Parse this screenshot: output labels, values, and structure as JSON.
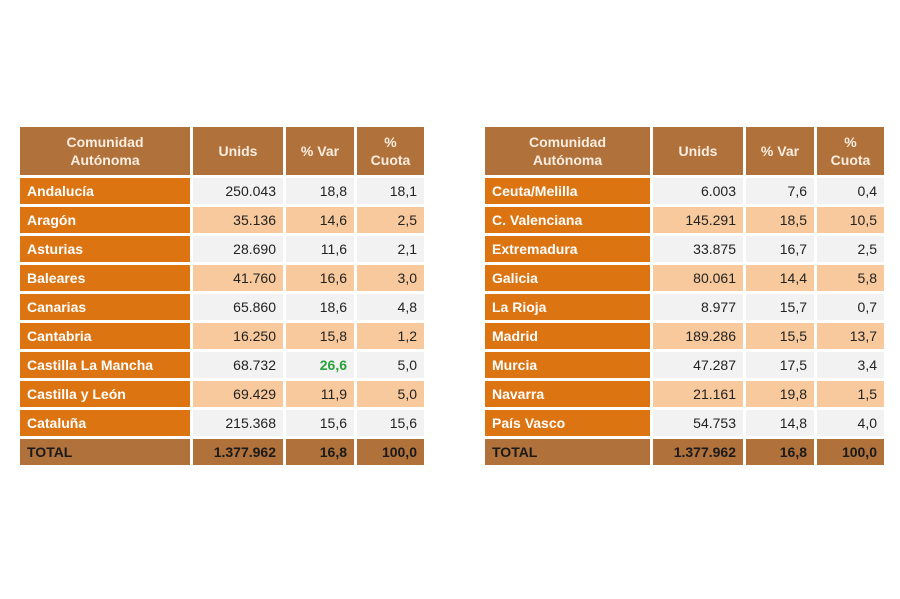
{
  "headers": {
    "comunidad_line1": "Comunidad",
    "comunidad_line2": "Autónoma",
    "units": "Unids",
    "var": "% Var",
    "cuota_line1": "%",
    "cuota_line2": "Cuota"
  },
  "left_table": {
    "rows": [
      {
        "name": "Andalucía",
        "units": "250.043",
        "var": "18,8",
        "cuota": "18,1"
      },
      {
        "name": "Aragón",
        "units": "35.136",
        "var": "14,6",
        "cuota": "2,5"
      },
      {
        "name": "Asturias",
        "units": "28.690",
        "var": "11,6",
        "cuota": "2,1"
      },
      {
        "name": "Baleares",
        "units": "41.760",
        "var": "16,6",
        "cuota": "3,0"
      },
      {
        "name": "Canarias",
        "units": "65.860",
        "var": "18,6",
        "cuota": "4,8"
      },
      {
        "name": "Cantabria",
        "units": "16.250",
        "var": "15,8",
        "cuota": "1,2"
      },
      {
        "name": "Castilla La Mancha",
        "units": "68.732",
        "var": "26,6",
        "cuota": "5,0"
      },
      {
        "name": "Castilla y León",
        "units": "69.429",
        "var": "11,9",
        "cuota": "5,0"
      },
      {
        "name": "Cataluña",
        "units": "215.368",
        "var": "15,6",
        "cuota": "15,6"
      }
    ],
    "total": {
      "name": "TOTAL",
      "units": "1.377.962",
      "var": "16,8",
      "cuota": "100,0"
    }
  },
  "right_table": {
    "rows": [
      {
        "name": "Ceuta/Melilla",
        "units": "6.003",
        "var": "7,6",
        "cuota": "0,4"
      },
      {
        "name": "C. Valenciana",
        "units": "145.291",
        "var": "18,5",
        "cuota": "10,5"
      },
      {
        "name": "Extremadura",
        "units": "33.875",
        "var": "16,7",
        "cuota": "2,5"
      },
      {
        "name": "Galicia",
        "units": "80.061",
        "var": "14,4",
        "cuota": "5,8"
      },
      {
        "name": "La Rioja",
        "units": "8.977",
        "var": "15,7",
        "cuota": "0,7"
      },
      {
        "name": "Madrid",
        "units": "189.286",
        "var": "15,5",
        "cuota": "13,7"
      },
      {
        "name": "Murcia",
        "units": "47.287",
        "var": "17,5",
        "cuota": "3,4"
      },
      {
        "name": "Navarra",
        "units": "21.161",
        "var": "19,8",
        "cuota": "1,5"
      },
      {
        "name": "País Vasco",
        "units": "54.753",
        "var": "14,8",
        "cuota": "4,0"
      }
    ],
    "total": {
      "name": "TOTAL",
      "units": "1.377.962",
      "var": "16,8",
      "cuota": "100,0"
    }
  },
  "colors": {
    "header_bg": "#b0713b",
    "name_bg": "#dd7412",
    "row_light": "#f2f2f2",
    "row_tan": "#f7c99c",
    "highlight_green": "#2aa13a"
  }
}
